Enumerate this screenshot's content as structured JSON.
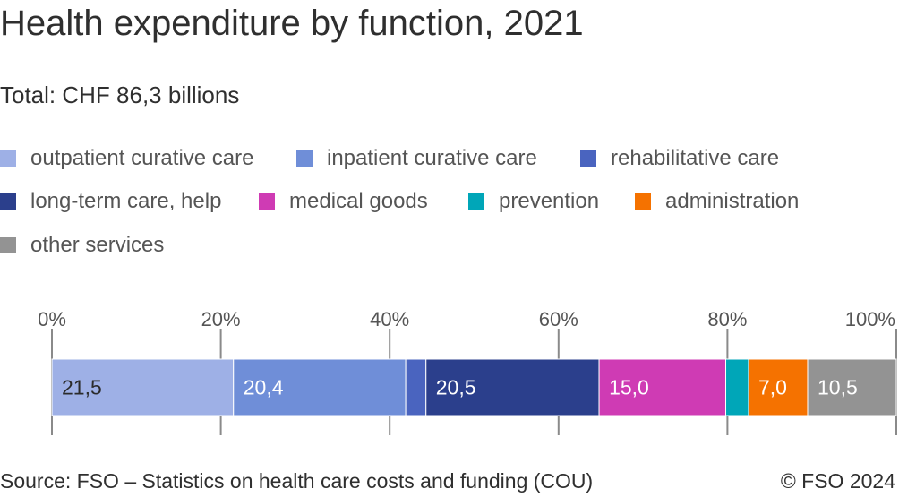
{
  "header": {
    "title": "Health expenditure by function, 2021",
    "subtitle": "Total: CHF 86,3 billions"
  },
  "footer": {
    "source": "Source: FSO – Statistics on health care costs and funding (COU)",
    "copyright": "© FSO 2024"
  },
  "chart_data": {
    "type": "bar",
    "orientation": "horizontal-stacked-100",
    "title": "Health expenditure by function, 2021",
    "subtitle": "Total: CHF 86,3 billions",
    "xlim": [
      0,
      100
    ],
    "x_ticks": [
      "0%",
      "20%",
      "40%",
      "60%",
      "80%",
      "100%"
    ],
    "legend_placement": "top",
    "series": [
      {
        "name": "outpatient curative care",
        "value": 21.5,
        "label": "21,5",
        "color": "#9eb0e6",
        "label_color": "#2b2b2b"
      },
      {
        "name": "inpatient curative care",
        "value": 20.4,
        "label": "20,4",
        "color": "#6f8ed8",
        "label_color": "#ffffff"
      },
      {
        "name": "rehabilitative care",
        "value": 2.4,
        "label": "",
        "color": "#4a64bf",
        "label_color": "#ffffff"
      },
      {
        "name": "long-term care, help",
        "value": 20.5,
        "label": "20,5",
        "color": "#2b3f8c",
        "label_color": "#ffffff"
      },
      {
        "name": "medical goods",
        "value": 15.0,
        "label": "15,0",
        "color": "#cf3bb4",
        "label_color": "#ffffff"
      },
      {
        "name": "prevention",
        "value": 2.7,
        "label": "",
        "color": "#00a6b8",
        "label_color": "#ffffff"
      },
      {
        "name": "administration",
        "value": 7.0,
        "label": "7,0",
        "color": "#f57200",
        "label_color": "#ffffff"
      },
      {
        "name": "other services",
        "value": 10.5,
        "label": "10,5",
        "color": "#939393",
        "label_color": "#ffffff"
      }
    ]
  }
}
